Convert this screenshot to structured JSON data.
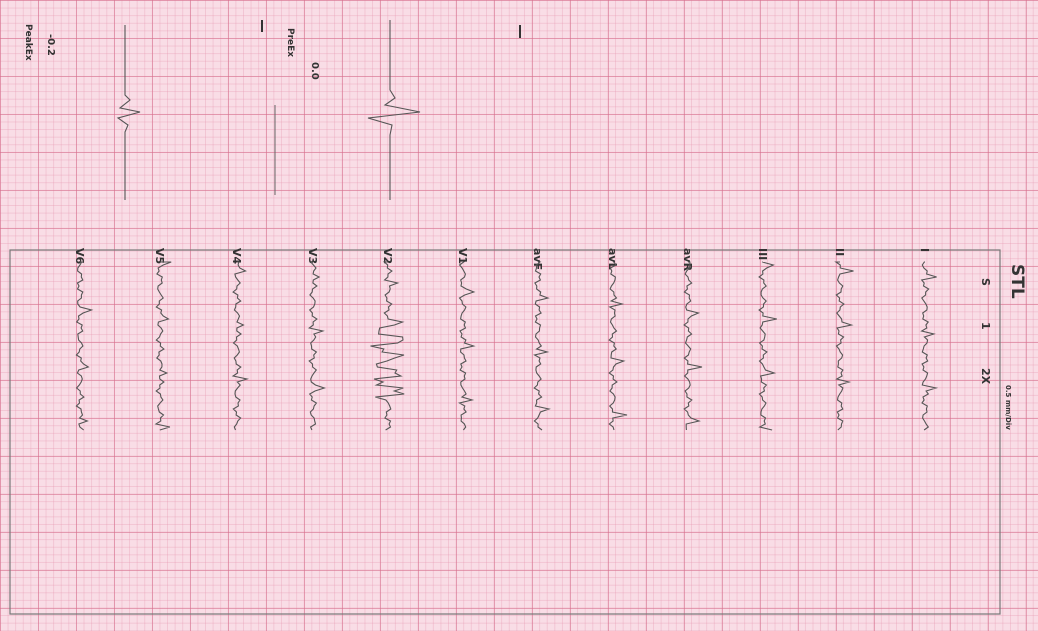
{
  "header": {
    "title": "STL",
    "settings": [
      "S",
      "1",
      "2X"
    ],
    "scale": "0.5 mm/Div"
  },
  "leads": [
    "I",
    "II",
    "III",
    "avR",
    "avL",
    "avF",
    "V1",
    "V2",
    "V3",
    "V4",
    "V5",
    "V6"
  ],
  "measurements": [
    {
      "value": "0.0",
      "label": "PreEx"
    },
    {
      "value": "-0.2",
      "label": "PeakEx"
    }
  ]
}
